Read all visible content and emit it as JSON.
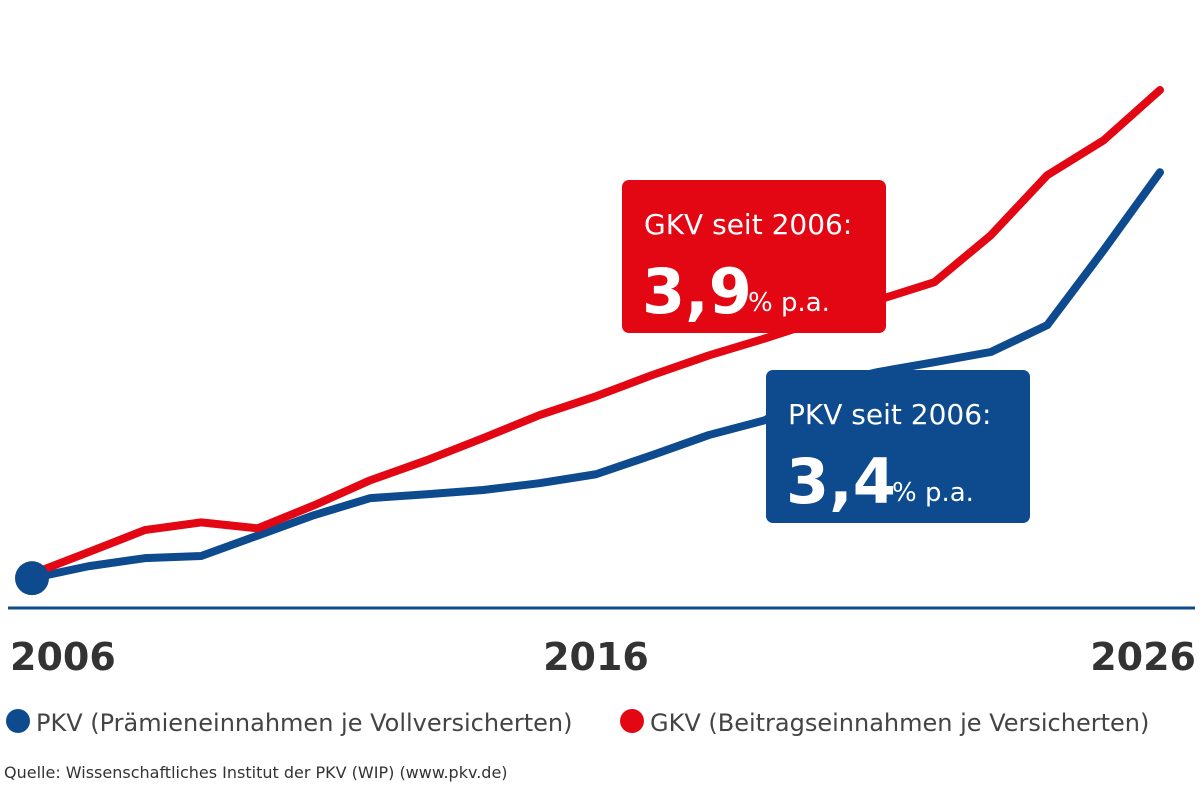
{
  "chart_data": {
    "type": "line",
    "x": [
      2006,
      2007,
      2008,
      2009,
      2010,
      2011,
      2012,
      2013,
      2014,
      2015,
      2016,
      2017,
      2018,
      2019,
      2020,
      2021,
      2022,
      2023,
      2024,
      2025,
      2026
    ],
    "series": [
      {
        "name": "PKV (Prämieneinnahmen je Vollversicherten)",
        "color": "#0d4a8e",
        "values": [
          100,
          102.8,
          104.7,
          105.2,
          110,
          114.8,
          118.8,
          119.7,
          120.7,
          122.3,
          124.4,
          128.9,
          133.6,
          137.1,
          145.3,
          148.4,
          150.7,
          153.1,
          159.4,
          177,
          195.3
        ]
      },
      {
        "name": "GKV (Beitragseinnahmen je Versicherten)",
        "color": "#e30613",
        "values": [
          101,
          106.1,
          111.3,
          113.1,
          111.7,
          117.1,
          123,
          127.7,
          132.9,
          138.3,
          142.7,
          147.7,
          152.3,
          156.3,
          160.6,
          165.3,
          169.5,
          180.5,
          194.6,
          202.8,
          214.6
        ]
      }
    ],
    "xlim": [
      2006,
      2026
    ],
    "xticks": [
      2006,
      2016,
      2026
    ],
    "ylim": [
      93,
      224
    ],
    "annotations": [
      {
        "label": "GKV seit 2006:",
        "value": "3,9",
        "unit": "% p.a.",
        "color": "#e30613"
      },
      {
        "label": "PKV seit 2006:",
        "value": "3,4",
        "unit": "% p.a.",
        "color": "#0d4a8e"
      }
    ],
    "source": "Quelle: Wissenschaftliches Institut der PKV (WIP) (www.pkv.de)"
  }
}
